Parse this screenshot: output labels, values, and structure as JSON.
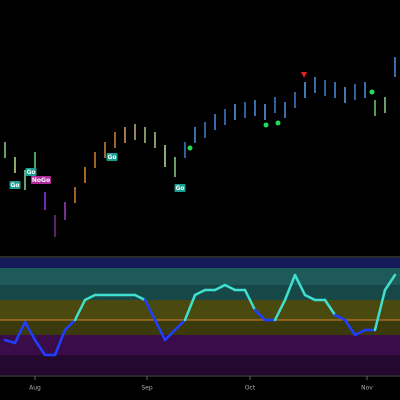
{
  "chart_data": {
    "type": "ohlc",
    "xlim": [
      -0.5,
      39.5
    ],
    "xticks": [
      {
        "value": 3,
        "label": "Aug"
      },
      {
        "value": 14.2,
        "label": "Sep"
      },
      {
        "value": 24.5,
        "label": "Oct"
      },
      {
        "value": 36.2,
        "label": "Nov"
      }
    ],
    "ylim": [
      0,
      255
    ],
    "high": [
      113,
      98,
      85,
      103,
      63,
      40,
      53,
      68,
      88,
      103,
      113,
      123,
      128,
      131,
      128,
      123,
      110,
      98,
      113,
      128,
      133,
      141,
      146,
      151,
      153,
      155,
      151,
      158,
      153,
      163,
      173,
      178,
      175,
      173,
      168,
      171,
      173,
      155,
      158,
      198
    ],
    "low": [
      97,
      82,
      65,
      87,
      45,
      18,
      35,
      52,
      72,
      87,
      97,
      107,
      112,
      115,
      112,
      107,
      88,
      78,
      97,
      112,
      117,
      125,
      130,
      135,
      137,
      139,
      135,
      142,
      137,
      147,
      157,
      162,
      159,
      157,
      152,
      155,
      157,
      139,
      142,
      178
    ],
    "colors": [
      "#8fd18f",
      "#b8e08a",
      "#8fd18f",
      "#6fcf6f",
      "#9b30ff",
      "#7b2d8b",
      "#a040c0",
      "#d9822b",
      "#e08a30",
      "#d9822b",
      "#c98a40",
      "#d9822b",
      "#d9a070",
      "#c8b080",
      "#b3c77f",
      "#a8d08a",
      "#c0e0a0",
      "#8fd18f",
      "#3d7fd6",
      "#4a90e2",
      "#3d7fd6",
      "#4a90e2",
      "#3d7fd6",
      "#5aa0e8",
      "#3d7fd6",
      "#4a90e2",
      "#5aa0e8",
      "#3d7fd6",
      "#4a90e2",
      "#3d7fd6",
      "#5aa0e8",
      "#4a90e2",
      "#3d7fd6",
      "#4a90e2",
      "#5aa0e8",
      "#3d7fd6",
      "#4a90e2",
      "#6fcf6f",
      "#8fd18f",
      "#4a90e2"
    ],
    "annotations": [
      "Go",
      "Go",
      "NoGo",
      "Go",
      "Go"
    ],
    "oscillator": {
      "ylim": [
        0,
        117
      ],
      "values": [
        35,
        32,
        53,
        35,
        20,
        20,
        45,
        55,
        75,
        80,
        80,
        80,
        80,
        80,
        75,
        55,
        35,
        45,
        55,
        80,
        85,
        85,
        90,
        85,
        85,
        65,
        55,
        55,
        75,
        100,
        80,
        75,
        75,
        60,
        55,
        40,
        45,
        45,
        85,
        100
      ],
      "colors": [
        "#1f3fff",
        "#1f3fff",
        "#1f3fff",
        "#1f3fff",
        "#1f3fff",
        "#1f3fff",
        "#1f3fff",
        "#1f3fff",
        "#40e0d0",
        "#40e0d0",
        "#40e0d0",
        "#40e0d0",
        "#40e0d0",
        "#40e0d0",
        "#40e0d0",
        "#1f3fff",
        "#1f3fff",
        "#1f3fff",
        "#1f3fff",
        "#40e0d0",
        "#40e0d0",
        "#40e0d0",
        "#40e0d0",
        "#40e0d0",
        "#40e0d0",
        "#40e0d0",
        "#1f3fff",
        "#1f3fff",
        "#40e0d0",
        "#40e0d0",
        "#40e0d0",
        "#40e0d0",
        "#40e0d0",
        "#40e0d0",
        "#1f3fff",
        "#1f3fff",
        "#1f3fff",
        "#1f3fff",
        "#40e0d0",
        "#40e0d0"
      ]
    }
  }
}
